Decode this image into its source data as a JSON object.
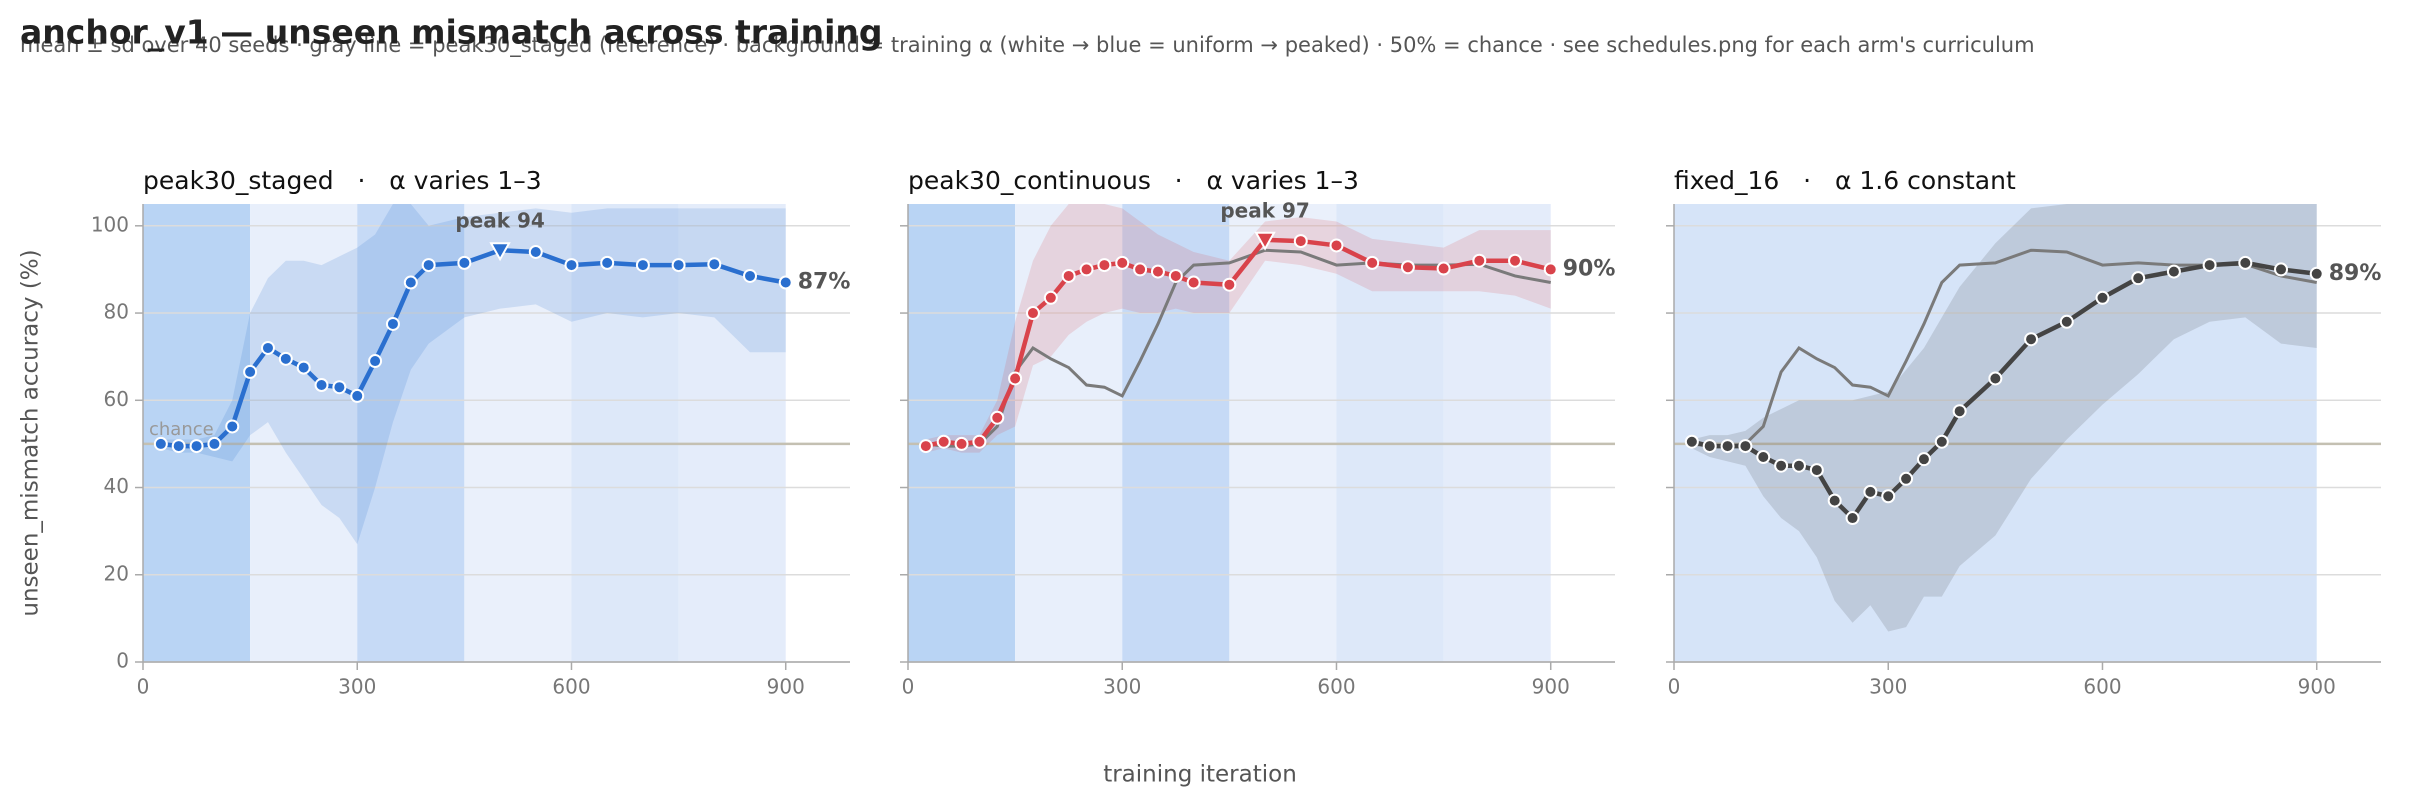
{
  "title": "anchor_v1 — unseen mismatch across training",
  "subtitle": "mean ± sd over 40 seeds · gray line = peak30_staged (reference) · background = training α (white → blue = uniform → peaked) · 50% = chance · see schedules.png for each arm's curriculum",
  "x_label": "training iteration",
  "y_label": "unseen_mismatch accuracy (%)",
  "chart_data": [
    {
      "type": "line",
      "title": "peak30_staged   ·   α varies 1–3",
      "xlim": [
        0,
        990
      ],
      "ylim": [
        0,
        105
      ],
      "xticks": [
        0,
        300,
        600,
        900
      ],
      "yticks": [
        0,
        20,
        40,
        60,
        80,
        100
      ],
      "y_tick_labels": true,
      "grid": true,
      "chance": 50,
      "chance_label": "chance",
      "reference": false,
      "backgrounds": [
        {
          "x": [
            0,
            150
          ],
          "color": "#b9d4f4"
        },
        {
          "x": [
            150,
            300
          ],
          "color": "#e8effb"
        },
        {
          "x": [
            300,
            450
          ],
          "color": "#c6daf6"
        },
        {
          "x": [
            450,
            600
          ],
          "color": "#eaf0fb"
        },
        {
          "x": [
            600,
            750
          ],
          "color": "#dde8f9"
        },
        {
          "x": [
            750,
            900
          ],
          "color": "#e4ecfa"
        }
      ],
      "x": [
        25,
        50,
        75,
        100,
        125,
        150,
        175,
        200,
        225,
        250,
        275,
        300,
        325,
        350,
        375,
        400,
        450,
        500,
        550,
        600,
        650,
        700,
        750,
        800,
        850,
        900
      ],
      "series": [
        {
          "color": "#2a6fcf",
          "values": [
            50,
            49.5,
            49.5,
            50,
            54,
            66.5,
            72,
            69.5,
            67.5,
            63.5,
            63,
            61,
            69,
            77.5,
            87,
            91,
            91.5,
            94.4,
            94,
            91,
            91.5,
            91,
            91,
            91.2,
            88.5,
            87
          ],
          "upper": [
            51,
            51,
            51,
            52,
            60,
            80,
            88,
            92,
            92,
            91,
            93,
            95,
            98,
            105,
            105,
            100,
            102,
            103,
            104,
            103,
            104,
            104,
            104,
            104,
            104,
            104
          ],
          "lower": [
            49,
            48,
            48,
            47,
            46,
            52,
            55,
            48,
            42,
            36,
            33,
            27,
            40,
            55,
            67,
            73,
            79,
            81,
            82,
            78,
            80,
            79,
            80,
            79,
            71,
            71
          ],
          "end_label": "87%"
        }
      ],
      "annotation": {
        "text": "peak 94",
        "x": 500
      }
    },
    {
      "type": "line",
      "title": "peak30_continuous   ·   α varies 1–3",
      "xlim": [
        0,
        990
      ],
      "ylim": [
        0,
        105
      ],
      "xticks": [
        0,
        300,
        600,
        900
      ],
      "yticks": [
        0,
        20,
        40,
        60,
        80,
        100
      ],
      "y_tick_labels": false,
      "grid": true,
      "chance": 50,
      "reference": true,
      "reference_color": "#7a7a7a",
      "backgrounds": [
        {
          "x": [
            0,
            150
          ],
          "color": "#b9d4f4"
        },
        {
          "x": [
            150,
            300
          ],
          "color": "#e8effb"
        },
        {
          "x": [
            300,
            450
          ],
          "color": "#c6daf6"
        },
        {
          "x": [
            450,
            600
          ],
          "color": "#eaf0fb"
        },
        {
          "x": [
            600,
            750
          ],
          "color": "#dde8f9"
        },
        {
          "x": [
            750,
            900
          ],
          "color": "#e4ecfa"
        }
      ],
      "x": [
        25,
        50,
        75,
        100,
        125,
        150,
        175,
        200,
        225,
        250,
        275,
        300,
        325,
        350,
        375,
        400,
        450,
        500,
        550,
        600,
        650,
        700,
        750,
        800,
        850,
        900
      ],
      "series": [
        {
          "color": "#d9434b",
          "values": [
            49.5,
            50.5,
            50,
            50.5,
            56,
            65,
            80,
            83.5,
            88.5,
            90,
            91,
            91.5,
            90,
            89.5,
            88.5,
            87,
            86.5,
            96.8,
            96.5,
            95.5,
            91.5,
            90.5,
            90.2,
            92,
            92,
            90
          ],
          "upper": [
            51,
            52,
            52,
            52,
            60,
            78,
            92,
            100,
            105,
            105,
            105,
            104,
            101,
            98,
            96,
            94,
            92,
            101,
            102,
            101,
            97,
            96,
            95,
            99,
            99,
            99
          ],
          "lower": [
            48,
            49,
            48,
            48,
            52,
            54,
            68,
            70,
            75,
            78,
            80,
            81,
            80,
            80,
            81,
            80,
            80,
            92,
            91,
            89,
            85,
            85,
            85,
            85,
            84,
            81
          ],
          "end_label": "90%"
        }
      ],
      "annotation": {
        "text": "peak 97",
        "x": 500
      }
    },
    {
      "type": "line",
      "title": "fixed_16   ·   α 1.6 constant",
      "xlim": [
        0,
        990
      ],
      "ylim": [
        0,
        105
      ],
      "xticks": [
        0,
        300,
        600,
        900
      ],
      "yticks": [
        0,
        20,
        40,
        60,
        80,
        100
      ],
      "y_tick_labels": false,
      "grid": true,
      "chance": 50,
      "reference": true,
      "reference_color": "#7a7a7a",
      "backgrounds": [
        {
          "x": [
            0,
            900
          ],
          "color": "#d6e4f8"
        }
      ],
      "x": [
        25,
        50,
        75,
        100,
        125,
        150,
        175,
        200,
        225,
        250,
        275,
        300,
        325,
        350,
        375,
        400,
        450,
        500,
        550,
        600,
        650,
        700,
        750,
        800,
        850,
        900
      ],
      "series": [
        {
          "color": "#444444",
          "values": [
            50.5,
            49.5,
            49.5,
            49.5,
            47,
            45,
            45,
            44,
            37,
            33,
            39,
            38,
            42,
            46.5,
            50.5,
            57.5,
            65,
            74,
            78,
            83.5,
            88,
            89.5,
            91,
            91.5,
            90,
            89
          ],
          "upper": [
            51,
            52,
            52,
            53,
            56,
            58,
            60,
            60,
            60,
            60,
            61,
            62,
            67,
            72,
            79,
            86,
            96,
            104,
            105,
            105,
            105,
            105,
            105,
            105,
            105,
            105
          ],
          "lower": [
            49,
            47,
            46,
            45,
            38,
            33,
            30,
            24,
            14,
            9,
            13,
            7,
            8,
            15,
            15,
            22,
            29,
            42,
            51,
            59,
            66,
            74,
            78,
            79,
            73,
            72
          ],
          "end_label": "89%"
        }
      ]
    }
  ]
}
